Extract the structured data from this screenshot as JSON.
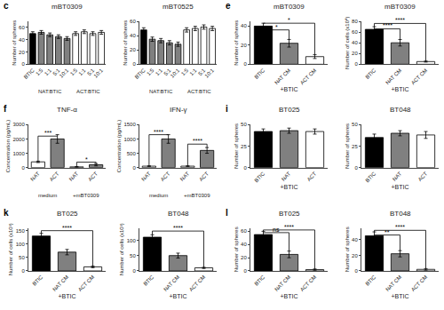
{
  "chart_data": [
    {
      "type": "bar",
      "title": "mBT0309",
      "ylabel": "Number of spheres",
      "categories": [
        "BTIC",
        "1:5",
        "1:1",
        "5:1",
        "10:1",
        "1:5",
        "1:1",
        "5:1",
        "10:1"
      ],
      "values": [
        50,
        52,
        48,
        45,
        42,
        50,
        53,
        50,
        52
      ],
      "errors": [
        3,
        3,
        3,
        3,
        3,
        3,
        3,
        3,
        3
      ],
      "colors": [
        "black",
        "gray",
        "gray",
        "gray",
        "gray",
        "white",
        "white",
        "white",
        "white"
      ],
      "ylim": [
        0,
        70
      ],
      "yticks": [
        0,
        20,
        40,
        60
      ],
      "grid": false,
      "groups": [
        {
          "label": "NAT:BTIC",
          "from": 0,
          "to": 4
        },
        {
          "label": "ACT:BTIC",
          "from": 5,
          "to": 8
        }
      ],
      "annotations": [
        {
          "text": "c"
        }
      ]
    },
    {
      "type": "bar",
      "title": "mBT0525",
      "ylabel": "Number of spheres",
      "categories": [
        "BTIC",
        "1:5",
        "1:1",
        "5:1",
        "10:1",
        "1:5",
        "1:1",
        "5:1",
        "10:1"
      ],
      "values": [
        48,
        35,
        33,
        30,
        28,
        48,
        50,
        52,
        50
      ],
      "errors": [
        3,
        3,
        3,
        3,
        3,
        3,
        3,
        3,
        3
      ],
      "colors": [
        "black",
        "gray",
        "gray",
        "gray",
        "gray",
        "white",
        "white",
        "white",
        "white"
      ],
      "ylim": [
        0,
        60
      ],
      "yticks": [
        0,
        20,
        40,
        60
      ],
      "grid": false,
      "groups": [
        {
          "label": "NAT:BTIC",
          "from": 0,
          "to": 4
        },
        {
          "label": "ACT:BTIC",
          "from": 5,
          "to": 8
        }
      ]
    },
    {
      "type": "bar",
      "title": "mBT0309",
      "ylabel": "Number of spheres",
      "xlabel": "+BTIC",
      "categories": [
        "BTIC",
        "NAT CM",
        "ACT CM"
      ],
      "values": [
        40,
        22,
        8
      ],
      "errors": [
        3,
        4,
        2
      ],
      "colors": [
        "black",
        "gray",
        "white"
      ],
      "ylim": [
        0,
        45
      ],
      "yticks": [
        0,
        20,
        40
      ],
      "grid": false,
      "annotations": [
        {
          "text": "e"
        },
        {
          "text": "*",
          "from": 0,
          "to": 2,
          "y": 43
        },
        {
          "text": "*",
          "from": 0,
          "to": 1,
          "y": 36
        }
      ]
    },
    {
      "type": "bar",
      "title": "mBT0309",
      "ylabel": "Number of cells (x10⁴)",
      "xlabel": "+BTIC",
      "categories": [
        "BTIC",
        "NAT CM",
        "ACT CM"
      ],
      "values": [
        65,
        40,
        5
      ],
      "errors": [
        5,
        6,
        1
      ],
      "colors": [
        "black",
        "gray",
        "white"
      ],
      "ylim": [
        0,
        80
      ],
      "yticks": [
        0,
        20,
        40,
        60,
        80
      ],
      "grid": false,
      "annotations": [
        {
          "text": "****",
          "from": 0,
          "to": 2,
          "y": 76
        },
        {
          "text": "****",
          "from": 0,
          "to": 1,
          "y": 66
        }
      ]
    },
    {
      "type": "bar",
      "title": "TNF-α",
      "ylabel": "Concentration (pg/mL)",
      "categories": [
        "NAT",
        "ACT",
        "NAT",
        "ACT"
      ],
      "values": [
        400,
        2000,
        50,
        200
      ],
      "errors": [
        50,
        300,
        20,
        80
      ],
      "colors": [
        "white",
        "gray",
        "white",
        "gray"
      ],
      "ylim": [
        0,
        3000
      ],
      "yticks": [
        0,
        1000,
        2000,
        3000
      ],
      "grid": false,
      "groups": [
        {
          "label": "medium",
          "from": 0,
          "to": 1
        },
        {
          "label": "+mBT0309",
          "from": 2,
          "to": 3
        }
      ],
      "annotations": [
        {
          "text": "f"
        },
        {
          "text": "***",
          "from": 0,
          "to": 1,
          "y": 2200
        },
        {
          "text": "*",
          "from": 2,
          "to": 3,
          "y": 380
        }
      ]
    },
    {
      "type": "bar",
      "title": "IFN-γ",
      "ylabel": "Concentration (pg/mL)",
      "categories": [
        "NAT",
        "ACT",
        "NAT",
        "ACT"
      ],
      "values": [
        50,
        1000,
        50,
        600
      ],
      "errors": [
        10,
        150,
        10,
        100
      ],
      "colors": [
        "white",
        "gray",
        "white",
        "gray"
      ],
      "ylim": [
        0,
        1500
      ],
      "yticks": [
        0,
        500,
        1000,
        1500
      ],
      "grid": false,
      "groups": [
        {
          "label": "medium",
          "from": 0,
          "to": 1
        },
        {
          "label": "+mBT0309",
          "from": 2,
          "to": 3
        }
      ],
      "annotations": [
        {
          "text": "****",
          "from": 0,
          "to": 1,
          "y": 1150
        },
        {
          "text": "****",
          "from": 2,
          "to": 3,
          "y": 820
        }
      ]
    },
    {
      "type": "bar",
      "title": "BT025",
      "ylabel": "Number of spheres",
      "xlabel": "+BTIC",
      "categories": [
        "BTIC",
        "NAT",
        "ACT"
      ],
      "values": [
        42,
        43,
        42
      ],
      "errors": [
        3,
        3,
        3
      ],
      "colors": [
        "black",
        "gray",
        "white"
      ],
      "ylim": [
        0,
        50
      ],
      "yticks": [
        0,
        25,
        50
      ],
      "grid": false,
      "annotations": [
        {
          "text": "i"
        }
      ]
    },
    {
      "type": "bar",
      "title": "BT048",
      "ylabel": "Number of spheres",
      "xlabel": "+BTIC",
      "categories": [
        "BTIC",
        "NAT",
        "ACT"
      ],
      "values": [
        35,
        40,
        38
      ],
      "errors": [
        4,
        3,
        4
      ],
      "colors": [
        "black",
        "gray",
        "white"
      ],
      "ylim": [
        0,
        50
      ],
      "yticks": [
        0,
        25,
        50
      ],
      "grid": false
    },
    {
      "type": "bar",
      "title": "BT025",
      "ylabel": "Number of cells (x10³)",
      "xlabel": "+BTIC",
      "categories": [
        "BTIC",
        "NAT CM",
        "ACT CM"
      ],
      "values": [
        130,
        70,
        15
      ],
      "errors": [
        10,
        10,
        3
      ],
      "colors": [
        "black",
        "gray",
        "white"
      ],
      "ylim": [
        0,
        160
      ],
      "yticks": [
        0,
        50,
        100,
        150
      ],
      "grid": false,
      "annotations": [
        {
          "text": "k"
        },
        {
          "text": "****",
          "from": 0,
          "to": 2,
          "y": 150
        }
      ]
    },
    {
      "type": "bar",
      "title": "BT048",
      "ylabel": "Number of cells (x10³)",
      "xlabel": "+BTIC",
      "categories": [
        "BTIC",
        "NAT CM",
        "ACT CM"
      ],
      "values": [
        110,
        50,
        10
      ],
      "errors": [
        8,
        8,
        2
      ],
      "colors": [
        "black",
        "gray",
        "white"
      ],
      "ylim": [
        0,
        140
      ],
      "yticks": [
        0,
        50,
        100
      ],
      "grid": false,
      "annotations": [
        {
          "text": "****",
          "from": 0,
          "to": 2,
          "y": 130
        }
      ]
    },
    {
      "type": "bar",
      "title": "BT025",
      "ylabel": "Number of spheres",
      "xlabel": "+BTIC",
      "categories": [
        "BTIC",
        "NAT CM",
        "ACT CM"
      ],
      "values": [
        55,
        25,
        2
      ],
      "errors": [
        5,
        5,
        1
      ],
      "colors": [
        "black",
        "gray",
        "white"
      ],
      "ylim": [
        0,
        65
      ],
      "yticks": [
        0,
        20,
        40,
        60
      ],
      "grid": false,
      "annotations": [
        {
          "text": "l"
        },
        {
          "text": "ns",
          "from": 0,
          "to": 1,
          "y": 58
        },
        {
          "text": "****",
          "from": 0,
          "to": 2,
          "y": 62
        }
      ]
    },
    {
      "type": "bar",
      "title": "BT048",
      "ylabel": "Number of spheres",
      "xlabel": "+BTIC",
      "categories": [
        "BTIC",
        "NAT CM",
        "ACT CM"
      ],
      "values": [
        45,
        22,
        2
      ],
      "errors": [
        5,
        4,
        1
      ],
      "colors": [
        "black",
        "gray",
        "white"
      ],
      "ylim": [
        0,
        55
      ],
      "yticks": [
        0,
        20,
        40
      ],
      "grid": false,
      "annotations": [
        {
          "text": "**",
          "from": 0,
          "to": 1,
          "y": 46
        },
        {
          "text": "****",
          "from": 0,
          "to": 2,
          "y": 52
        }
      ]
    }
  ]
}
